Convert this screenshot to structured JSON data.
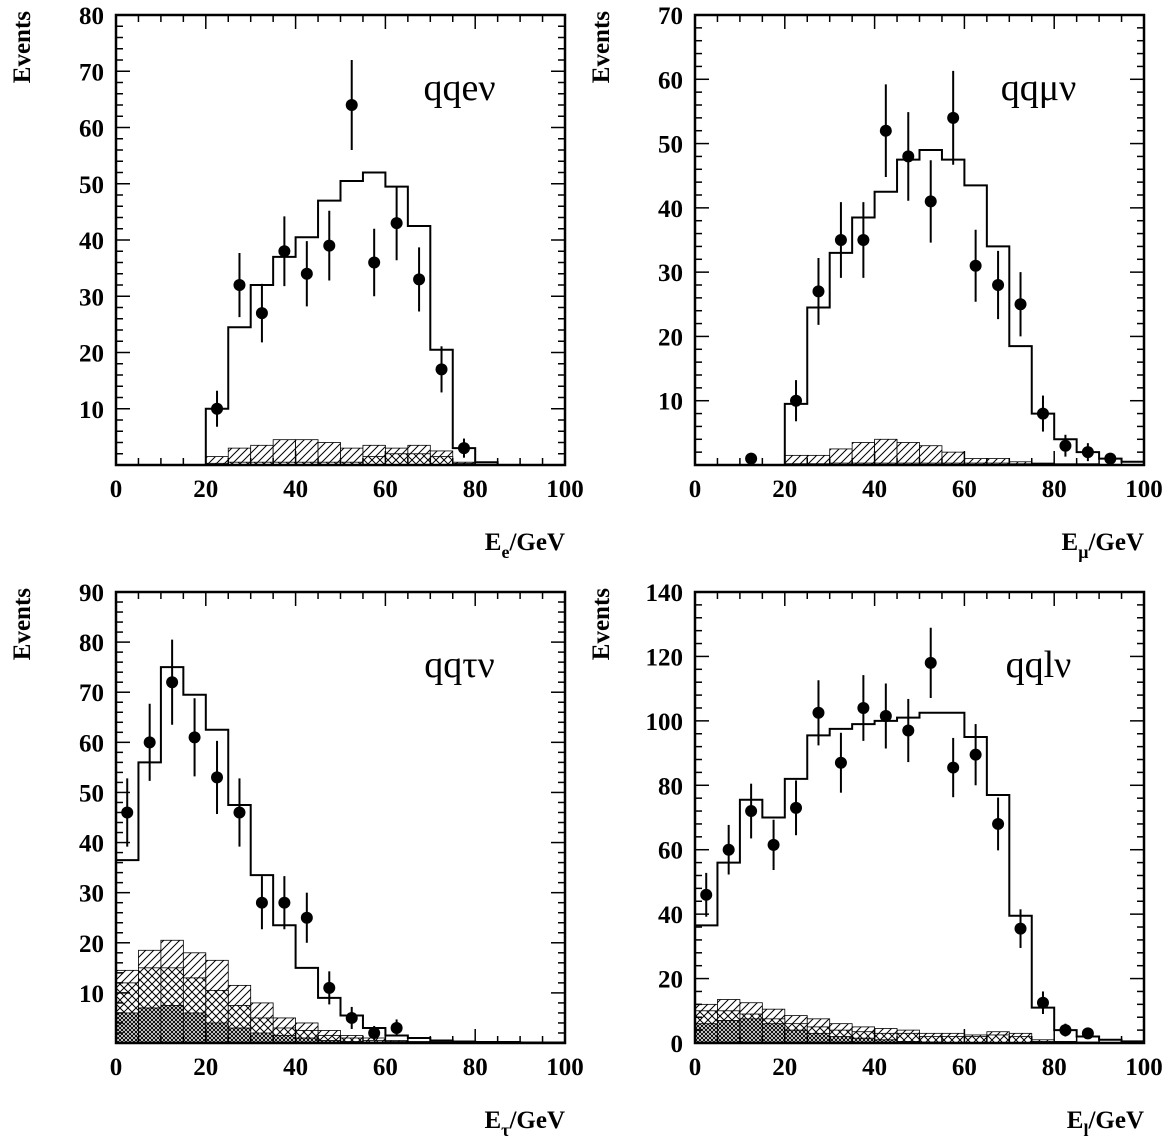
{
  "chart_data": [
    {
      "type": "histogram",
      "label": "qqeν",
      "xlabel": "E_e/GeV",
      "xlabel_main": "E",
      "xlabel_sub": "e",
      "xlabel_unit": "/GeV",
      "ylabel": "Events",
      "xlim": [
        0,
        100
      ],
      "ylim": [
        0,
        80
      ],
      "xticks": [
        0,
        20,
        40,
        60,
        80,
        100
      ],
      "yticks": [
        10,
        20,
        30,
        40,
        50,
        60,
        70,
        80
      ],
      "bin_edges": [
        0,
        5,
        10,
        15,
        20,
        25,
        30,
        35,
        40,
        45,
        50,
        55,
        60,
        65,
        70,
        75,
        80,
        85,
        90,
        95,
        100
      ],
      "mc_total": [
        0,
        0,
        0,
        0,
        10,
        24.5,
        32,
        37,
        40.5,
        47,
        50.5,
        52,
        49.5,
        42.5,
        20.5,
        3,
        0.5,
        0,
        0,
        0
      ],
      "bkg_hatched": [
        0,
        0,
        0,
        0,
        1.5,
        3,
        3.5,
        4.5,
        4.5,
        4,
        3,
        3.5,
        3,
        3.5,
        2.5,
        0.5,
        0,
        0,
        0,
        0
      ],
      "bkg_crosshatched": [
        0,
        0,
        0,
        0,
        0.3,
        0.5,
        0.5,
        0.5,
        0.5,
        0.5,
        0.5,
        1.5,
        2,
        2,
        1.5,
        0.3,
        0,
        0,
        0,
        0
      ],
      "bkg_dark": [
        0,
        0,
        0,
        0,
        0,
        0,
        0,
        0,
        0,
        0,
        0,
        0,
        0,
        0,
        0,
        0,
        0,
        0,
        0,
        0
      ],
      "data_points": [
        {
          "x": 22.5,
          "y": 10,
          "err": 3.2
        },
        {
          "x": 27.5,
          "y": 32,
          "err": 5.7
        },
        {
          "x": 32.5,
          "y": 27,
          "err": 5.2
        },
        {
          "x": 37.5,
          "y": 38,
          "err": 6.2
        },
        {
          "x": 42.5,
          "y": 34,
          "err": 5.8
        },
        {
          "x": 47.5,
          "y": 39,
          "err": 6.2
        },
        {
          "x": 52.5,
          "y": 64,
          "err": 8
        },
        {
          "x": 57.5,
          "y": 36,
          "err": 6
        },
        {
          "x": 62.5,
          "y": 43,
          "err": 6.6
        },
        {
          "x": 67.5,
          "y": 33,
          "err": 5.7
        },
        {
          "x": 72.5,
          "y": 17,
          "err": 4.1
        },
        {
          "x": 77.5,
          "y": 3,
          "err": 1.7
        }
      ]
    },
    {
      "type": "histogram",
      "label": "qqμν",
      "xlabel": "E_μ/GeV",
      "xlabel_main": "E",
      "xlabel_sub": "μ",
      "xlabel_unit": "/GeV",
      "ylabel": "Events",
      "xlim": [
        0,
        100
      ],
      "ylim": [
        0,
        70
      ],
      "xticks": [
        0,
        20,
        40,
        60,
        80,
        100
      ],
      "yticks": [
        10,
        20,
        30,
        40,
        50,
        60,
        70
      ],
      "bin_edges": [
        0,
        5,
        10,
        15,
        20,
        25,
        30,
        35,
        40,
        45,
        50,
        55,
        60,
        65,
        70,
        75,
        80,
        85,
        90,
        95,
        100
      ],
      "mc_total": [
        0,
        0,
        0,
        0,
        9.5,
        24.5,
        33,
        38.5,
        42.5,
        47.5,
        49,
        47.5,
        43.5,
        34,
        18.5,
        8,
        4,
        2,
        1,
        0.5
      ],
      "bkg_hatched": [
        0,
        0,
        0,
        0,
        1.5,
        1.5,
        2.5,
        3.5,
        4,
        3.5,
        3,
        2,
        1,
        1,
        0.5,
        0.3,
        0.2,
        0.2,
        0.1,
        0
      ],
      "bkg_crosshatched": [
        0,
        0,
        0,
        0,
        0.2,
        0.2,
        0.3,
        0.3,
        0.3,
        0.3,
        0.3,
        0.3,
        0.3,
        0.3,
        0.2,
        0.2,
        0.1,
        0.1,
        0,
        0
      ],
      "bkg_dark": [
        0,
        0,
        0,
        0,
        0,
        0,
        0,
        0,
        0,
        0,
        0,
        0,
        0,
        0,
        0,
        0,
        0,
        0,
        0,
        0
      ],
      "data_points": [
        {
          "x": 12.5,
          "y": 1,
          "err": 0
        },
        {
          "x": 22.5,
          "y": 10,
          "err": 3.2
        },
        {
          "x": 27.5,
          "y": 27,
          "err": 5.2
        },
        {
          "x": 32.5,
          "y": 35,
          "err": 5.9
        },
        {
          "x": 37.5,
          "y": 35,
          "err": 5.9
        },
        {
          "x": 42.5,
          "y": 52,
          "err": 7.2
        },
        {
          "x": 47.5,
          "y": 48,
          "err": 6.9
        },
        {
          "x": 52.5,
          "y": 41,
          "err": 6.4
        },
        {
          "x": 57.5,
          "y": 54,
          "err": 7.3
        },
        {
          "x": 62.5,
          "y": 31,
          "err": 5.6
        },
        {
          "x": 67.5,
          "y": 28,
          "err": 5.3
        },
        {
          "x": 72.5,
          "y": 25,
          "err": 5
        },
        {
          "x": 77.5,
          "y": 8,
          "err": 2.8
        },
        {
          "x": 82.5,
          "y": 3,
          "err": 1.7
        },
        {
          "x": 87.5,
          "y": 2,
          "err": 1.4
        },
        {
          "x": 92.5,
          "y": 1,
          "err": 0
        }
      ]
    },
    {
      "type": "histogram",
      "label": "qqτν",
      "xlabel": "E_τ/GeV",
      "xlabel_main": "E",
      "xlabel_sub": "τ",
      "xlabel_unit": "/GeV",
      "ylabel": "Events",
      "xlim": [
        0,
        100
      ],
      "ylim": [
        0,
        90
      ],
      "xticks": [
        0,
        20,
        40,
        60,
        80,
        100
      ],
      "yticks": [
        10,
        20,
        30,
        40,
        50,
        60,
        70,
        80,
        90
      ],
      "bin_edges": [
        0,
        5,
        10,
        15,
        20,
        25,
        30,
        35,
        40,
        45,
        50,
        55,
        60,
        65,
        70,
        75,
        80,
        85,
        90,
        95,
        100
      ],
      "mc_total": [
        36.5,
        56,
        75,
        69.5,
        62.5,
        47.5,
        33.5,
        23.5,
        15,
        9,
        5.5,
        3,
        1.5,
        1,
        0.5,
        0.3,
        0.2,
        0.2,
        0.1,
        0.1
      ],
      "bkg_hatched": [
        14.5,
        18.5,
        20.5,
        18,
        16.5,
        11.5,
        8,
        5,
        4,
        2.5,
        1.5,
        1,
        0.5,
        0.3,
        0.2,
        0.1,
        0,
        0,
        0,
        0
      ],
      "bkg_crosshatched": [
        12,
        15,
        15,
        13,
        10.5,
        7.5,
        5,
        3,
        2.5,
        1.5,
        1,
        0.5,
        0.3,
        0.2,
        0.1,
        0,
        0,
        0,
        0,
        0
      ],
      "bkg_dark": [
        6,
        7,
        7.5,
        6,
        4,
        3,
        2,
        1.5,
        1,
        0.5,
        0.3,
        0.2,
        0.1,
        0,
        0,
        0,
        0,
        0,
        0,
        0
      ],
      "data_points": [
        {
          "x": 2.5,
          "y": 46,
          "err": 6.8
        },
        {
          "x": 7.5,
          "y": 60,
          "err": 7.7
        },
        {
          "x": 12.5,
          "y": 72,
          "err": 8.5
        },
        {
          "x": 17.5,
          "y": 61,
          "err": 7.8
        },
        {
          "x": 22.5,
          "y": 53,
          "err": 7.3
        },
        {
          "x": 27.5,
          "y": 46,
          "err": 6.8
        },
        {
          "x": 32.5,
          "y": 28,
          "err": 5.3
        },
        {
          "x": 37.5,
          "y": 28,
          "err": 5.3
        },
        {
          "x": 42.5,
          "y": 25,
          "err": 5
        },
        {
          "x": 47.5,
          "y": 11,
          "err": 3.3
        },
        {
          "x": 52.5,
          "y": 5,
          "err": 2.2
        },
        {
          "x": 57.5,
          "y": 2,
          "err": 1.4
        },
        {
          "x": 62.5,
          "y": 3,
          "err": 1.7
        }
      ]
    },
    {
      "type": "histogram",
      "label": "qqlν",
      "xlabel": "E_l/GeV",
      "xlabel_main": "E",
      "xlabel_sub": "l",
      "xlabel_unit": "/GeV",
      "ylabel": "Events",
      "xlim": [
        0,
        100
      ],
      "ylim": [
        0,
        140
      ],
      "xticks": [
        0,
        20,
        40,
        60,
        80,
        100
      ],
      "yticks": [
        0,
        20,
        40,
        60,
        80,
        100,
        120,
        140
      ],
      "bin_edges": [
        0,
        5,
        10,
        15,
        20,
        25,
        30,
        35,
        40,
        45,
        50,
        55,
        60,
        65,
        70,
        75,
        80,
        85,
        90,
        95,
        100
      ],
      "mc_total": [
        36.5,
        56,
        75.5,
        70,
        82,
        95.5,
        97.5,
        99,
        100,
        101,
        102.5,
        102.5,
        95,
        77,
        39.5,
        11,
        4,
        2,
        1,
        0.5
      ],
      "bkg_hatched": [
        12,
        13.5,
        12.5,
        10.5,
        8.5,
        7.5,
        6,
        5,
        4.5,
        4,
        3,
        3,
        2.5,
        3.5,
        3,
        1,
        0.5,
        0.3,
        0.2,
        0.1
      ],
      "bkg_crosshatched": [
        10,
        10,
        9,
        7.5,
        6,
        5,
        4,
        3.5,
        3,
        3,
        2,
        2,
        2,
        2.5,
        2,
        0.5,
        0.3,
        0.2,
        0.1,
        0
      ],
      "bkg_dark": [
        6,
        7,
        7.5,
        6,
        4,
        3,
        2,
        1.5,
        1,
        0.5,
        0.3,
        0.2,
        0.1,
        0,
        0,
        0,
        0,
        0,
        0,
        0
      ],
      "data_points": [
        {
          "x": 2.5,
          "y": 46,
          "err": 6.8
        },
        {
          "x": 7.5,
          "y": 60,
          "err": 7.7
        },
        {
          "x": 12.5,
          "y": 72,
          "err": 8.5
        },
        {
          "x": 17.5,
          "y": 61.5,
          "err": 7.8
        },
        {
          "x": 22.5,
          "y": 73,
          "err": 8.5
        },
        {
          "x": 27.5,
          "y": 102.5,
          "err": 10.1
        },
        {
          "x": 32.5,
          "y": 87,
          "err": 9.3
        },
        {
          "x": 37.5,
          "y": 104,
          "err": 10.2
        },
        {
          "x": 42.5,
          "y": 101.5,
          "err": 10.1
        },
        {
          "x": 47.5,
          "y": 97,
          "err": 9.8
        },
        {
          "x": 52.5,
          "y": 118,
          "err": 10.9
        },
        {
          "x": 57.5,
          "y": 85.5,
          "err": 9.2
        },
        {
          "x": 62.5,
          "y": 89.5,
          "err": 9.5
        },
        {
          "x": 67.5,
          "y": 68,
          "err": 8.2
        },
        {
          "x": 72.5,
          "y": 35.5,
          "err": 6
        },
        {
          "x": 77.5,
          "y": 12.5,
          "err": 3.5
        },
        {
          "x": 82.5,
          "y": 4,
          "err": 2
        },
        {
          "x": 87.5,
          "y": 3,
          "err": 1.7
        }
      ]
    }
  ]
}
